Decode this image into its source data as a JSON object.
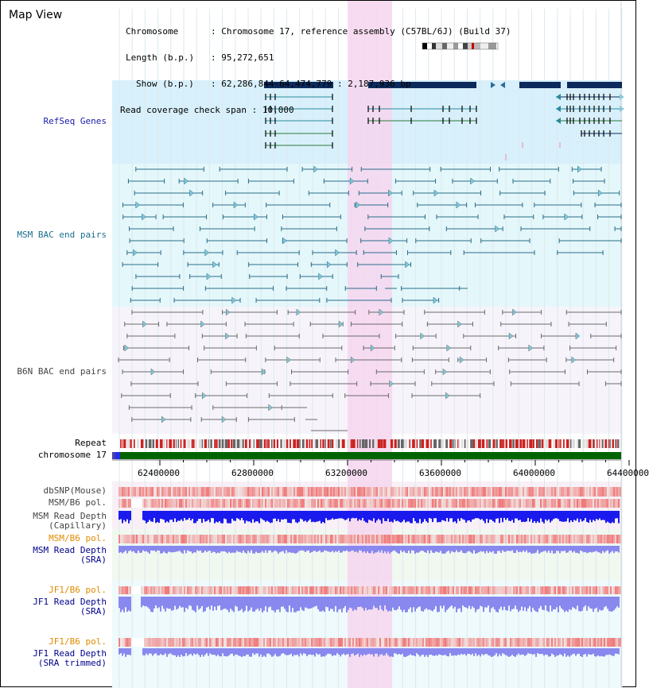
{
  "title": "Map View",
  "info": {
    "chromosome_key": "Chromosome",
    "chromosome_value": "Chromosome 17, reference assembly (C57BL/6J) (Build 37)",
    "length_key": "Length (b.p.)",
    "length_value": "95,272,651",
    "show_key": "Show (b.p.)",
    "show_value": "62,286,844-64,474,779 : 2,187,936 bp",
    "coverage_key": "Read coverage check span",
    "coverage_value": "10,000"
  },
  "tracks": {
    "refseq": "RefSeq Genes",
    "msm_bac": "MSM BAC end pairs",
    "b6n_bac": "B6N BAC end pairs",
    "repeat": "Repeat",
    "chromosome": "chromosome 17",
    "dbsnp": "dbSNP(Mouse)",
    "msm_b6_pol_cap": "MSM/B6 pol.",
    "msm_depth_cap_1": "MSM Read Depth",
    "msm_depth_cap_2": "(Capillary)",
    "msm_b6_pol_sra": "MSM/B6 pol.",
    "msm_depth_sra_1": "MSM Read Depth",
    "msm_depth_sra_2": "(SRA)",
    "jf1_b6_pol_sra": "JF1/B6 pol.",
    "jf1_depth_sra_1": "JF1 Read Depth",
    "jf1_depth_sra_2": "(SRA)",
    "jf1_b6_pol_trim": "JF1/B6 pol.",
    "jf1_depth_trim_1": "JF1 Read Depth",
    "jf1_depth_trim_2": "(SRA trimmed)"
  },
  "axis": {
    "range": [
      62286844,
      64474779
    ],
    "ticks": [
      "62400000",
      "62800000",
      "63200000",
      "63600000",
      "64000000",
      "64400000"
    ]
  },
  "highlight_range": [
    63200000,
    63390000
  ],
  "colors": {
    "refseq_bg": "#d8f0fb",
    "msm_bg": "#e4f7fa",
    "b6n_bg": "#f6f4fa",
    "highlight": "#f6d6ee",
    "gene_dark": "#0c2a5c",
    "gene_teal": "#2a8a9c",
    "gene_green": "#2a7a3a",
    "msm_pair": "#2a6e8a",
    "b6n_pair": "#6a6a6a",
    "chrom_bar": "#006400",
    "repeat_red": "#cc2222",
    "depth_blue": "#1a1aee",
    "depth_lightblue": "#8888ee",
    "pol_red": "#ee4444",
    "label_blue": "#1a1aaa",
    "label_teal": "#1a6f8f",
    "label_gray": "#444444",
    "label_orange": "#e08a00",
    "label_navy": "#00008b"
  }
}
